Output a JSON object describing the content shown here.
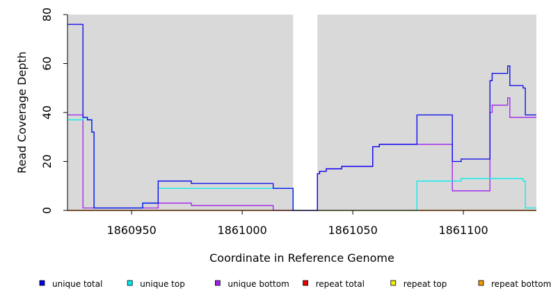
{
  "chart_data": {
    "type": "line",
    "title": "",
    "xlabel": "Coordinate in Reference Genome",
    "ylabel": "Read Coverage Depth",
    "xlim": [
      1860921,
      1861133
    ],
    "ylim": [
      0,
      80
    ],
    "x_ticks": [
      1860950,
      1861000,
      1861050,
      1861100
    ],
    "y_ticks": [
      0,
      20,
      40,
      60,
      80
    ],
    "background": "#d9d9d9",
    "gaps": [
      [
        1861023,
        1861034
      ]
    ],
    "grid": false,
    "legend_position": "bottom",
    "series": [
      {
        "name": "unique total",
        "color": "#0000ee",
        "points": [
          [
            1860921,
            76
          ],
          [
            1860928,
            76
          ],
          [
            1860928,
            38
          ],
          [
            1860930,
            38
          ],
          [
            1860930,
            37
          ],
          [
            1860932,
            37
          ],
          [
            1860932,
            32
          ],
          [
            1860933,
            32
          ],
          [
            1860933,
            1
          ],
          [
            1860955,
            1
          ],
          [
            1860955,
            3
          ],
          [
            1860962,
            3
          ],
          [
            1860962,
            12
          ],
          [
            1860977,
            12
          ],
          [
            1860977,
            11
          ],
          [
            1861014,
            11
          ],
          [
            1861014,
            9
          ],
          [
            1861023,
            9
          ],
          [
            1861023,
            0
          ],
          [
            1861034,
            0
          ],
          [
            1861034,
            15
          ],
          [
            1861035,
            15
          ],
          [
            1861035,
            16
          ],
          [
            1861038,
            16
          ],
          [
            1861038,
            17
          ],
          [
            1861045,
            17
          ],
          [
            1861045,
            18
          ],
          [
            1861059,
            18
          ],
          [
            1861059,
            26
          ],
          [
            1861062,
            26
          ],
          [
            1861062,
            27
          ],
          [
            1861079,
            27
          ],
          [
            1861079,
            39
          ],
          [
            1861095,
            39
          ],
          [
            1861095,
            20
          ],
          [
            1861099,
            20
          ],
          [
            1861099,
            21
          ],
          [
            1861112,
            21
          ],
          [
            1861112,
            53
          ],
          [
            1861113,
            53
          ],
          [
            1861113,
            56
          ],
          [
            1861120,
            56
          ],
          [
            1861120,
            59
          ],
          [
            1861121,
            59
          ],
          [
            1861121,
            51
          ],
          [
            1861127,
            51
          ],
          [
            1861127,
            50
          ],
          [
            1861128,
            50
          ],
          [
            1861128,
            39
          ],
          [
            1861133,
            39
          ]
        ]
      },
      {
        "name": "unique top",
        "color": "#00eeee",
        "points": [
          [
            1860921,
            37
          ],
          [
            1860928,
            37
          ],
          [
            1860928,
            38
          ],
          [
            1860930,
            38
          ],
          [
            1860930,
            37
          ],
          [
            1860932,
            37
          ],
          [
            1860932,
            32
          ],
          [
            1860933,
            32
          ],
          [
            1860933,
            1
          ],
          [
            1860955,
            1
          ],
          [
            1860955,
            3
          ],
          [
            1860962,
            3
          ],
          [
            1860962,
            9
          ],
          [
            1861014,
            9
          ],
          [
            1861014,
            9
          ],
          [
            1861023,
            9
          ],
          [
            1861023,
            0
          ],
          [
            1861079,
            0
          ],
          [
            1861079,
            12
          ],
          [
            1861099,
            12
          ],
          [
            1861099,
            13
          ],
          [
            1861127,
            13
          ],
          [
            1861127,
            12
          ],
          [
            1861128,
            12
          ],
          [
            1861128,
            1
          ],
          [
            1861133,
            1
          ]
        ]
      },
      {
        "name": "unique bottom",
        "color": "#a020f0",
        "points": [
          [
            1860921,
            39
          ],
          [
            1860928,
            39
          ],
          [
            1860928,
            1
          ],
          [
            1860955,
            1
          ],
          [
            1860962,
            1
          ],
          [
            1860962,
            3
          ],
          [
            1860977,
            3
          ],
          [
            1860977,
            2
          ],
          [
            1861014,
            2
          ],
          [
            1861014,
            0
          ],
          [
            1861034,
            0
          ],
          [
            1861034,
            15
          ],
          [
            1861035,
            15
          ],
          [
            1861035,
            16
          ],
          [
            1861038,
            16
          ],
          [
            1861038,
            17
          ],
          [
            1861045,
            17
          ],
          [
            1861045,
            18
          ],
          [
            1861059,
            18
          ],
          [
            1861059,
            26
          ],
          [
            1861062,
            26
          ],
          [
            1861062,
            27
          ],
          [
            1861095,
            27
          ],
          [
            1861095,
            8
          ],
          [
            1861112,
            8
          ],
          [
            1861112,
            40
          ],
          [
            1861113,
            40
          ],
          [
            1861113,
            43
          ],
          [
            1861120,
            43
          ],
          [
            1861120,
            46
          ],
          [
            1861121,
            46
          ],
          [
            1861121,
            38
          ],
          [
            1861133,
            38
          ]
        ]
      },
      {
        "name": "repeat total",
        "color": "#ee0000",
        "points": [
          [
            1860921,
            0
          ],
          [
            1861133,
            0
          ]
        ]
      },
      {
        "name": "repeat top",
        "color": "#eeee00",
        "points": [
          [
            1860921,
            0
          ],
          [
            1861133,
            0
          ]
        ]
      },
      {
        "name": "repeat bottom",
        "color": "#ee9a00",
        "points": [
          [
            1860921,
            0
          ],
          [
            1861133,
            0
          ]
        ]
      }
    ]
  }
}
